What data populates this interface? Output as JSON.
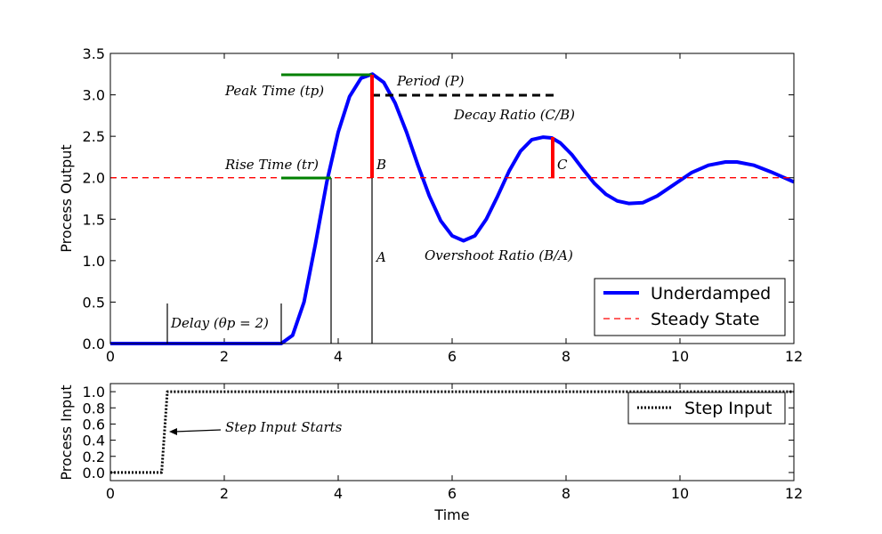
{
  "chart_data": [
    {
      "type": "line",
      "ylabel": "Process Output",
      "xlim": [
        0,
        12
      ],
      "ylim": [
        0,
        3.5
      ],
      "x_ticks": [
        "0",
        "2",
        "4",
        "6",
        "8",
        "10",
        "12"
      ],
      "y_ticks": [
        "0.0",
        "0.5",
        "1.0",
        "1.5",
        "2.0",
        "2.5",
        "3.0",
        "3.5"
      ],
      "legend_position": "lower-right",
      "series": [
        {
          "name": "Underdamped",
          "color": "#0000ff",
          "style": "solid",
          "x": [
            0,
            3.0,
            3.2,
            3.4,
            3.6,
            3.8,
            4.0,
            4.2,
            4.4,
            4.6,
            4.8,
            5.0,
            5.2,
            5.4,
            5.6,
            5.8,
            6.0,
            6.2,
            6.4,
            6.6,
            6.8,
            7.0,
            7.2,
            7.4,
            7.6,
            7.75,
            7.9,
            8.1,
            8.3,
            8.5,
            8.7,
            8.9,
            9.1,
            9.35,
            9.6,
            9.9,
            10.2,
            10.5,
            10.8,
            11.0,
            11.3,
            11.6,
            11.8,
            12.0
          ],
          "y": [
            0,
            0,
            0.1,
            0.5,
            1.2,
            1.95,
            2.55,
            2.98,
            3.2,
            3.25,
            3.15,
            2.9,
            2.55,
            2.15,
            1.78,
            1.48,
            1.3,
            1.24,
            1.3,
            1.5,
            1.78,
            2.08,
            2.32,
            2.46,
            2.49,
            2.48,
            2.42,
            2.28,
            2.1,
            1.93,
            1.8,
            1.72,
            1.69,
            1.7,
            1.78,
            1.92,
            2.06,
            2.15,
            2.19,
            2.19,
            2.15,
            2.07,
            2.01,
            1.95
          ]
        },
        {
          "name": "Steady State",
          "color": "#ff0000",
          "style": "dashed",
          "x": [
            0,
            12
          ],
          "y": [
            2.0,
            2.0
          ]
        }
      ],
      "annotations": [
        {
          "text": "Peak Time (tp)",
          "x": 2.0,
          "y": 3.05
        },
        {
          "text": "Period (P)",
          "x": 5.0,
          "y": 3.15
        },
        {
          "text": "Decay Ratio (C/B)",
          "x": 6.0,
          "y": 2.6
        },
        {
          "text": "Rise Time (tr)",
          "x": 2.0,
          "y": 2.1
        },
        {
          "text": "B",
          "x": 4.65,
          "y": 2.1
        },
        {
          "text": "C",
          "x": 7.8,
          "y": 2.1
        },
        {
          "text": "A",
          "x": 4.65,
          "y": 1.0
        },
        {
          "text": "Overshoot Ratio (B/A)",
          "x": 5.5,
          "y": 1.0
        },
        {
          "text": "Delay (θp = 2)",
          "x": 1.05,
          "y": 0.22
        }
      ]
    },
    {
      "type": "line",
      "xlabel": "Time",
      "ylabel": "Process Input",
      "xlim": [
        0,
        12
      ],
      "ylim": [
        -0.1,
        1.1
      ],
      "x_ticks": [
        "0",
        "2",
        "4",
        "6",
        "8",
        "10",
        "12"
      ],
      "y_ticks": [
        "0.0",
        "0.2",
        "0.4",
        "0.6",
        "0.8",
        "1.0"
      ],
      "legend_position": "upper-right",
      "series": [
        {
          "name": "Step Input",
          "color": "#000000",
          "style": "dotted",
          "x": [
            0,
            0.9,
            1.0,
            12
          ],
          "y": [
            0,
            0,
            1.0,
            1.0
          ]
        }
      ],
      "annotations": [
        {
          "text": "Step Input Starts",
          "x": 2.0,
          "y": 0.55
        }
      ]
    }
  ]
}
